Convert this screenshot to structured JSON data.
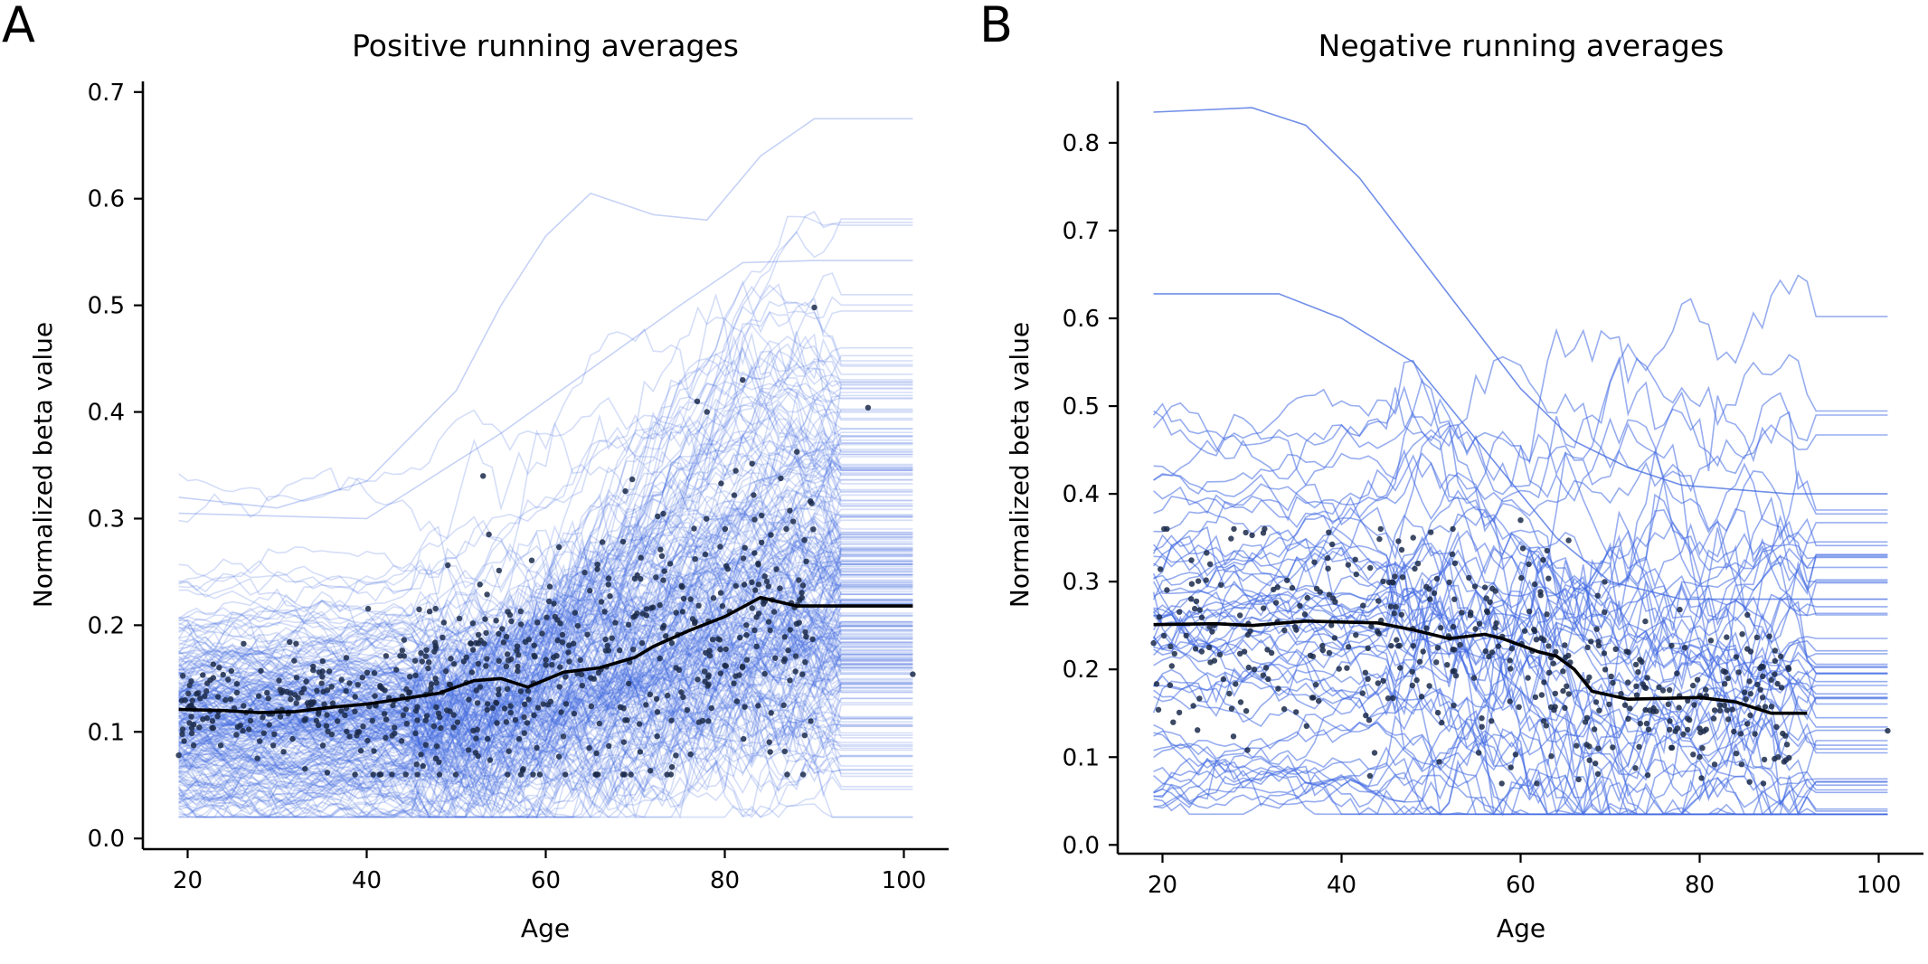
{
  "chart_data": [
    {
      "panel_label": "A",
      "type": "line",
      "title": "Positive running averages",
      "xlabel": "Age",
      "ylabel": "Normalized beta value",
      "xlim": [
        15,
        105
      ],
      "ylim": [
        -0.01,
        0.71
      ],
      "xticks": [
        20,
        40,
        60,
        80,
        100
      ],
      "yticks": [
        0.0,
        0.1,
        0.2,
        0.3,
        0.4,
        0.5,
        0.6,
        0.7
      ],
      "ytick_labels": [
        "0.0",
        "0.1",
        "0.2",
        "0.3",
        "0.4",
        "0.5",
        "0.6",
        "0.7"
      ],
      "grid": false,
      "individual_line_color": "#4169e1",
      "individual_line_opacity": 0.22,
      "individual_line_count": 260,
      "individual_x_range": [
        19,
        101
      ],
      "highlighted_series": [
        {
          "description": "highest upper trajectory",
          "points": [
            [
              19,
              0.32
            ],
            [
              30,
              0.31
            ],
            [
              40,
              0.335
            ],
            [
              50,
              0.42
            ],
            [
              55,
              0.5
            ],
            [
              60,
              0.565
            ],
            [
              65,
              0.605
            ],
            [
              72,
              0.585
            ],
            [
              78,
              0.58
            ],
            [
              84,
              0.64
            ],
            [
              90,
              0.675
            ],
            [
              101,
              0.675
            ]
          ]
        },
        {
          "description": "upper trajectory",
          "points": [
            [
              19,
              0.305
            ],
            [
              40,
              0.3
            ],
            [
              55,
              0.38
            ],
            [
              65,
              0.44
            ],
            [
              75,
              0.5
            ],
            [
              82,
              0.54
            ],
            [
              90,
              0.542
            ],
            [
              101,
              0.542
            ]
          ]
        }
      ],
      "mean_line": {
        "color": "#000000",
        "points": [
          [
            19,
            0.121
          ],
          [
            24,
            0.12
          ],
          [
            28,
            0.118
          ],
          [
            32,
            0.119
          ],
          [
            36,
            0.123
          ],
          [
            40,
            0.126
          ],
          [
            44,
            0.131
          ],
          [
            48,
            0.136
          ],
          [
            52,
            0.148
          ],
          [
            55,
            0.15
          ],
          [
            58,
            0.142
          ],
          [
            62,
            0.156
          ],
          [
            66,
            0.16
          ],
          [
            70,
            0.17
          ],
          [
            72,
            0.18
          ],
          [
            76,
            0.195
          ],
          [
            80,
            0.208
          ],
          [
            84,
            0.226
          ],
          [
            88,
            0.218
          ],
          [
            92,
            0.218
          ],
          [
            101,
            0.218
          ]
        ]
      },
      "scatter_points": {
        "color": "#1b2a4a",
        "count": 620,
        "x_range": [
          19,
          101
        ],
        "notable": [
          [
            90,
            0.498
          ],
          [
            96,
            0.404
          ],
          [
            82,
            0.43
          ],
          [
            78,
            0.4
          ],
          [
            53,
            0.34
          ],
          [
            101,
            0.154
          ],
          [
            19,
            0.078
          ]
        ]
      }
    },
    {
      "panel_label": "B",
      "type": "line",
      "title": "Negative running averages",
      "xlabel": "Age",
      "ylabel": "Normalized beta value",
      "xlim": [
        15,
        105
      ],
      "ylim": [
        -0.01,
        0.87
      ],
      "xticks": [
        20,
        40,
        60,
        80,
        100
      ],
      "yticks": [
        0.0,
        0.1,
        0.2,
        0.3,
        0.4,
        0.5,
        0.6,
        0.7,
        0.8
      ],
      "ytick_labels": [
        "0.0",
        "0.1",
        "0.2",
        "0.3",
        "0.4",
        "0.5",
        "0.6",
        "0.7",
        "0.8"
      ],
      "grid": false,
      "individual_line_color": "#4169e1",
      "individual_line_opacity": 0.55,
      "individual_line_count": 60,
      "individual_x_range": [
        19,
        101
      ],
      "highlighted_series": [
        {
          "description": "highest upper trajectory",
          "points": [
            [
              19,
              0.835
            ],
            [
              30,
              0.84
            ],
            [
              36,
              0.82
            ],
            [
              42,
              0.76
            ],
            [
              48,
              0.68
            ],
            [
              54,
              0.6
            ],
            [
              60,
              0.52
            ],
            [
              66,
              0.46
            ],
            [
              72,
              0.43
            ],
            [
              78,
              0.41
            ],
            [
              84,
              0.405
            ],
            [
              90,
              0.4
            ],
            [
              101,
              0.4
            ]
          ]
        },
        {
          "description": "second upper trajectory",
          "points": [
            [
              19,
              0.628
            ],
            [
              33,
              0.628
            ],
            [
              40,
              0.6
            ],
            [
              48,
              0.55
            ],
            [
              56,
              0.45
            ],
            [
              64,
              0.35
            ],
            [
              70,
              0.3
            ],
            [
              78,
              0.28
            ],
            [
              101,
              0.28
            ]
          ]
        }
      ],
      "mean_line": {
        "color": "#000000",
        "points": [
          [
            19,
            0.251
          ],
          [
            26,
            0.252
          ],
          [
            30,
            0.25
          ],
          [
            36,
            0.255
          ],
          [
            44,
            0.253
          ],
          [
            48,
            0.245
          ],
          [
            52,
            0.235
          ],
          [
            56,
            0.24
          ],
          [
            58,
            0.235
          ],
          [
            62,
            0.22
          ],
          [
            64,
            0.215
          ],
          [
            66,
            0.2
          ],
          [
            68,
            0.175
          ],
          [
            72,
            0.166
          ],
          [
            80,
            0.168
          ],
          [
            84,
            0.163
          ],
          [
            88,
            0.15
          ],
          [
            92,
            0.15
          ]
        ]
      },
      "scatter_points": {
        "color": "#1b2a4a",
        "count": 430,
        "x_range": [
          19,
          101
        ],
        "notable": [
          [
            19,
            0.23
          ],
          [
            101,
            0.13
          ],
          [
            48,
            0.35
          ],
          [
            60,
            0.37
          ]
        ]
      }
    }
  ]
}
